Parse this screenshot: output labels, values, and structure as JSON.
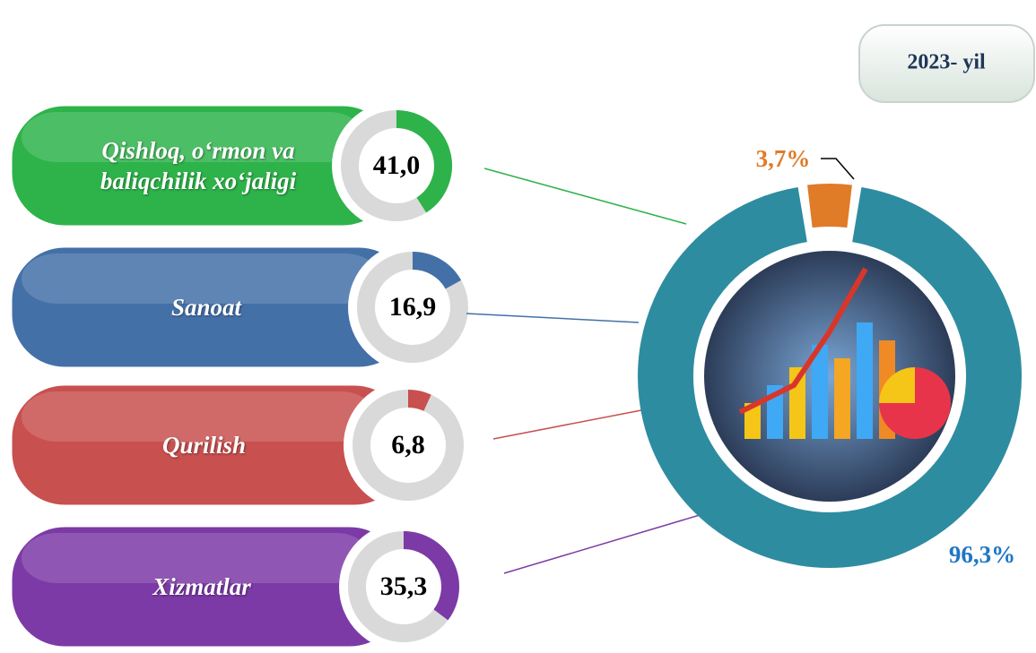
{
  "chart_data": [
    {
      "type": "gauge-list",
      "title": "2023- yil",
      "categories": [
        "Qishloq, o‘rmon va baliqchilik xo‘jaligi",
        "Sanoat",
        "Qurilish",
        "Xizmatlar"
      ],
      "values": [
        41.0,
        16.9,
        6.8,
        35.3
      ],
      "value_labels": [
        "41,0",
        "16,9",
        "6,8",
        "35,3"
      ],
      "colors": [
        "#2db34a",
        "#4470a8",
        "#c8504f",
        "#7c3aa6"
      ]
    },
    {
      "type": "donut",
      "values": [
        3.7,
        96.3
      ],
      "value_labels": [
        "3,7%",
        "96,3%"
      ],
      "colors": [
        "#e07b28",
        "#2e8ca0"
      ],
      "label_colors": [
        "#e07b28",
        "#1f77c4"
      ]
    }
  ]
}
